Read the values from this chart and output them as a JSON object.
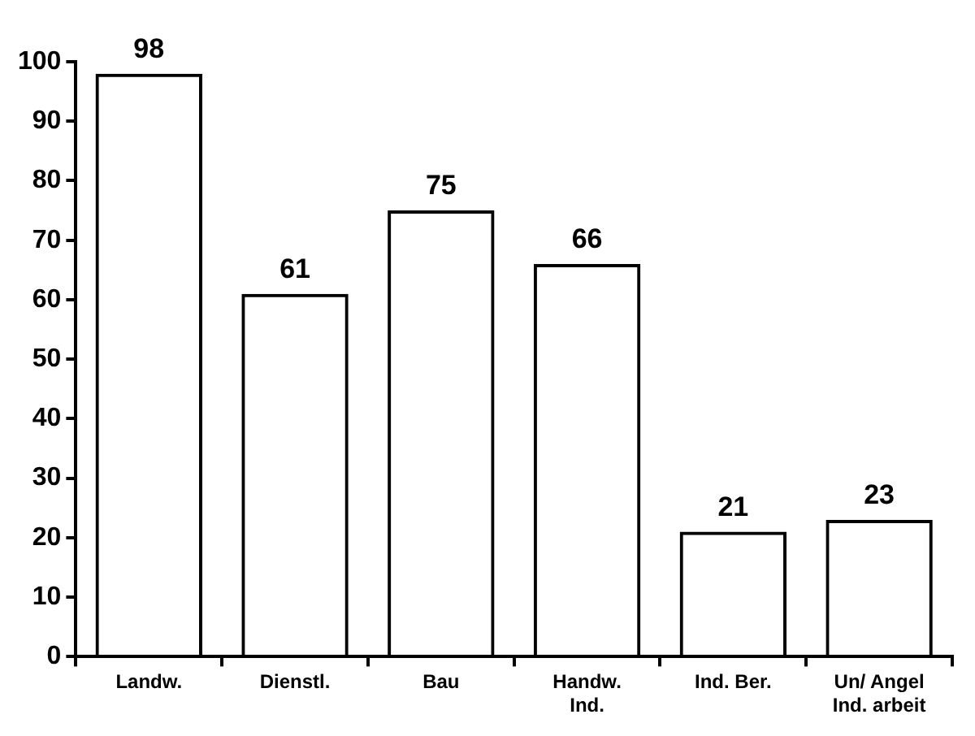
{
  "chart_data": {
    "type": "bar",
    "categories": [
      "Landw.",
      "Dienstl.",
      "Bau",
      "Handw.\nInd.",
      "Ind. Ber.",
      "Un/ Angel\nInd. arbeit"
    ],
    "values": [
      98,
      61,
      75,
      66,
      21,
      23
    ],
    "color": "#000000",
    "ylim": [
      0,
      100
    ],
    "yticks": [
      0,
      10,
      20,
      30,
      40,
      50,
      60,
      70,
      80,
      90,
      100
    ],
    "grid": false,
    "legend": false,
    "data_labels": true
  }
}
